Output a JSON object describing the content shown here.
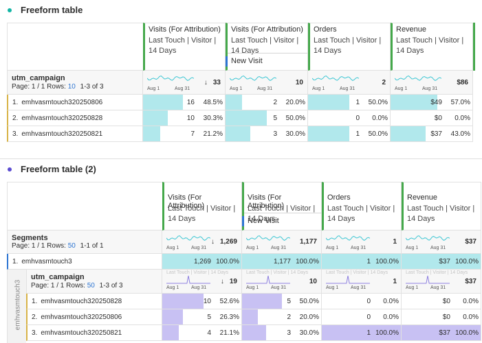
{
  "tables": [
    {
      "title": "Freeform table",
      "columns": [
        {
          "metric": "Visits (For Attribution)",
          "model": "Last Touch | Visitor | 14 Days"
        },
        {
          "metric": "Visits (For Attribution)",
          "model": "Last Touch | Visitor | 14 Days",
          "segment": "New Visit"
        },
        {
          "metric": "Orders",
          "model": "Last Touch | Visitor | 14 Days"
        },
        {
          "metric": "Revenue",
          "model": "Last Touch | Visitor | 14 Days"
        }
      ],
      "dimension": "utm_campaign",
      "page": "Page: 1 / 1",
      "rows_label": "Rows:",
      "rows": "10",
      "range": "1-3 of 3",
      "spark_start": "Aug 1",
      "spark_end": "Aug 31",
      "sort": "↓",
      "totals": [
        "33",
        "10",
        "2",
        "$86"
      ],
      "items": [
        {
          "index": "1.",
          "name": "emhvasmtouch320250806",
          "cells": [
            {
              "value": "16",
              "pct": "48.5%"
            },
            {
              "value": "2",
              "pct": "20.0%"
            },
            {
              "value": "1",
              "pct": "50.0%"
            },
            {
              "value": "$49",
              "pct": "57.0%"
            }
          ]
        },
        {
          "index": "2.",
          "name": "emhvasmtouch320250828",
          "cells": [
            {
              "value": "10",
              "pct": "30.3%"
            },
            {
              "value": "5",
              "pct": "50.0%"
            },
            {
              "value": "0",
              "pct": "0.0%"
            },
            {
              "value": "$0",
              "pct": "0.0%"
            }
          ]
        },
        {
          "index": "3.",
          "name": "emhvasmtouch320250821",
          "cells": [
            {
              "value": "7",
              "pct": "21.2%"
            },
            {
              "value": "3",
              "pct": "30.0%"
            },
            {
              "value": "1",
              "pct": "50.0%"
            },
            {
              "value": "$37",
              "pct": "43.0%"
            }
          ]
        }
      ]
    },
    {
      "title": "Freeform table (2)",
      "columns": [
        {
          "metric": "Visits (For Attribution)",
          "model": "Last Touch | Visitor | 14 Days"
        },
        {
          "metric": "Visits (For Attribution)",
          "model": "Last Touch | Visitor | 14 Days",
          "segment": "New Visit"
        },
        {
          "metric": "Orders",
          "model": "Last Touch | Visitor | 14 Days"
        },
        {
          "metric": "Revenue",
          "model": "Last Touch | Visitor | 14 Days"
        }
      ],
      "dimension": "Segments",
      "page": "Page: 1 / 1",
      "rows_label": "Rows:",
      "rows": "50",
      "range": "1-1 of 1",
      "spark_start": "Aug 1",
      "spark_end": "Aug 31",
      "sort": "↓",
      "totals": [
        "1,269",
        "1,177",
        "1",
        "$37"
      ],
      "items": [
        {
          "index": "1.",
          "name": "emhvasmtouch3",
          "cells": [
            {
              "value": "1,269",
              "pct": "100.0%"
            },
            {
              "value": "1,177",
              "pct": "100.0%"
            },
            {
              "value": "1",
              "pct": "100.0%"
            },
            {
              "value": "$37",
              "pct": "100.0%"
            }
          ]
        }
      ],
      "nested": {
        "label": "emhvasmtouch3",
        "dimension": "utm_campaign",
        "page": "Page: 1 / 1",
        "rows_label": "Rows:",
        "rows": "50",
        "range": "1-3 of 3",
        "totals": [
          "19",
          "10",
          "1",
          "$37"
        ],
        "items": [
          {
            "index": "1.",
            "name": "emhvasmtouch320250828",
            "cells": [
              {
                "value": "10",
                "pct": "52.6%"
              },
              {
                "value": "5",
                "pct": "50.0%"
              },
              {
                "value": "0",
                "pct": "0.0%"
              },
              {
                "value": "$0",
                "pct": "0.0%"
              }
            ]
          },
          {
            "index": "2.",
            "name": "emhvasmtouch320250806",
            "cells": [
              {
                "value": "5",
                "pct": "26.3%"
              },
              {
                "value": "2",
                "pct": "20.0%"
              },
              {
                "value": "0",
                "pct": "0.0%"
              },
              {
                "value": "$0",
                "pct": "0.0%"
              }
            ]
          },
          {
            "index": "3.",
            "name": "emhvasmtouch320250821",
            "cells": [
              {
                "value": "4",
                "pct": "21.1%"
              },
              {
                "value": "3",
                "pct": "30.0%"
              },
              {
                "value": "1",
                "pct": "100.0%"
              },
              {
                "value": "$37",
                "pct": "100.0%"
              }
            ]
          }
        ]
      }
    }
  ]
}
